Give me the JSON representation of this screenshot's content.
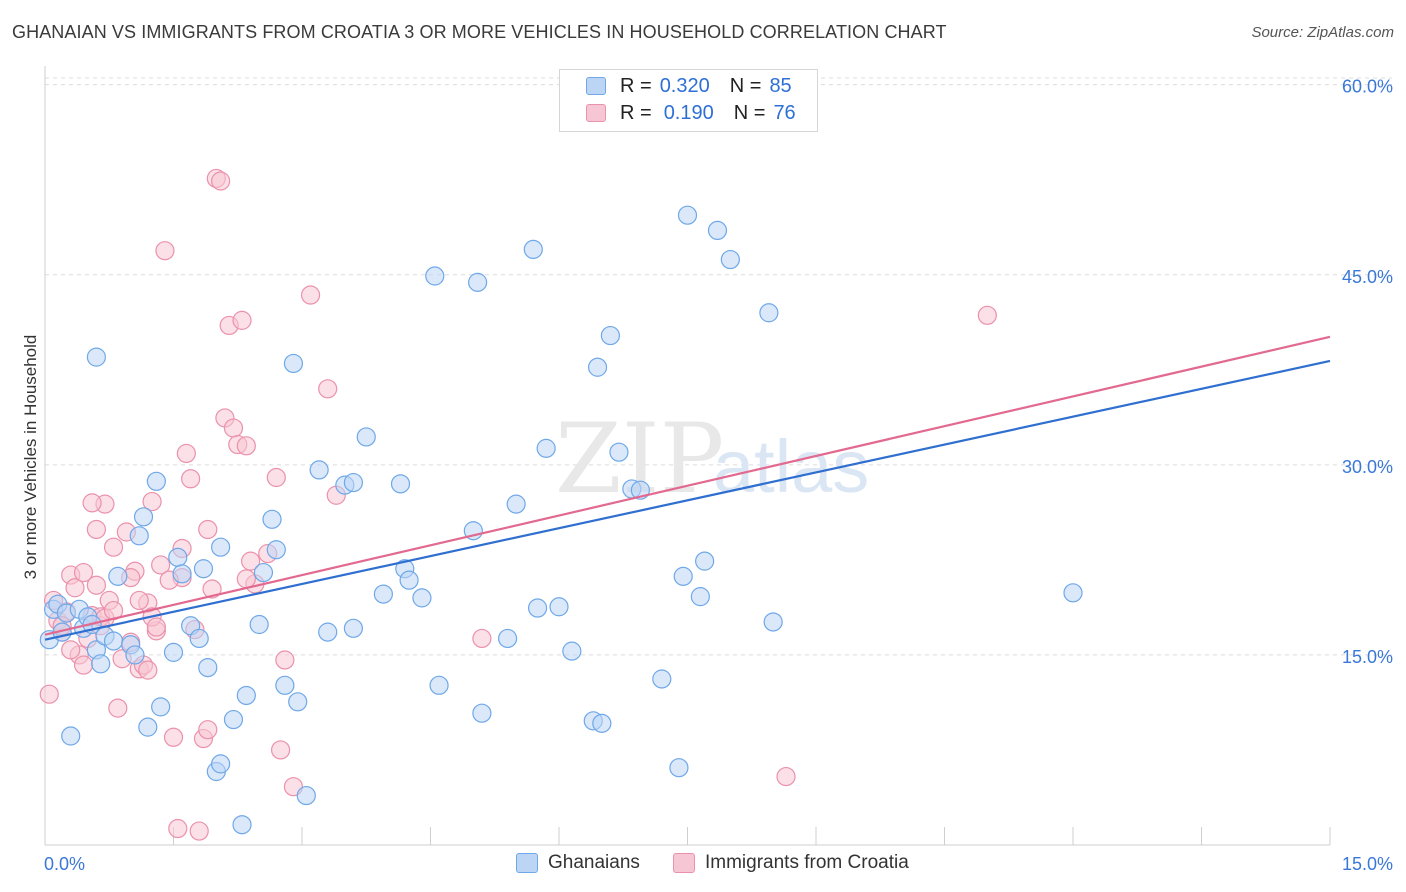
{
  "title": "GHANAIAN VS IMMIGRANTS FROM CROATIA 3 OR MORE VEHICLES IN HOUSEHOLD CORRELATION CHART",
  "source": "Source: ZipAtlas.com",
  "watermark": {
    "zip": "ZIP",
    "atlas": "atlas"
  },
  "legend": {
    "rows": [
      {
        "r_label": "R =",
        "r_value": "0.320",
        "n_label": "N =",
        "n_value": "85"
      },
      {
        "r_label": "R =",
        "r_value": "0.190",
        "n_label": "N =",
        "n_value": "76"
      }
    ]
  },
  "bottom_legend": {
    "series1": "Ghanaians",
    "series2": "Immigrants from Croatia"
  },
  "chart_data": {
    "type": "scatter",
    "title": "GHANAIAN VS IMMIGRANTS FROM CROATIA 3 OR MORE VEHICLES IN HOUSEHOLD CORRELATION CHART",
    "xlabel": "",
    "ylabel": "3 or more Vehicles in Household",
    "xlim": [
      0,
      15
    ],
    "ylim": [
      0,
      61
    ],
    "x_tick_labels": [
      "0.0%",
      "15.0%"
    ],
    "y_ticks": [
      15,
      30,
      45,
      60
    ],
    "y_tick_labels": [
      "15.0%",
      "30.0%",
      "45.0%",
      "60.0%"
    ],
    "grid": true,
    "colors": {
      "series1": "#6fa8e8",
      "series1_fill": "#bcd5f5",
      "series1_line": "#2f6fd0",
      "series2": "#eb91ab",
      "series2_fill": "#f7c6d4",
      "series2_line": "#e2698f",
      "axis_label": "#3a78d8"
    },
    "series": [
      {
        "name": "Ghanaians",
        "R": 0.32,
        "N": 85,
        "trend": {
          "x": [
            0,
            15
          ],
          "y": [
            16.2,
            38.2
          ]
        },
        "points": [
          [
            0.05,
            16.2
          ],
          [
            0.1,
            18.6
          ],
          [
            0.15,
            19.0
          ],
          [
            0.2,
            16.8
          ],
          [
            0.25,
            18.3
          ],
          [
            0.3,
            8.6
          ],
          [
            0.4,
            18.6
          ],
          [
            0.45,
            17.1
          ],
          [
            0.5,
            18.0
          ],
          [
            0.55,
            17.4
          ],
          [
            0.6,
            15.4
          ],
          [
            0.65,
            14.3
          ],
          [
            0.7,
            16.5
          ],
          [
            0.8,
            16.1
          ],
          [
            0.85,
            21.2
          ],
          [
            1.0,
            15.8
          ],
          [
            1.05,
            15.0
          ],
          [
            1.1,
            24.4
          ],
          [
            1.2,
            9.3
          ],
          [
            1.3,
            28.7
          ],
          [
            1.35,
            10.9
          ],
          [
            1.5,
            15.2
          ],
          [
            1.55,
            22.7
          ],
          [
            1.6,
            21.4
          ],
          [
            1.7,
            17.3
          ],
          [
            1.8,
            16.3
          ],
          [
            1.85,
            21.8
          ],
          [
            1.9,
            14.0
          ],
          [
            2.0,
            5.8
          ],
          [
            2.05,
            6.4
          ],
          [
            2.05,
            23.5
          ],
          [
            2.2,
            9.9
          ],
          [
            2.3,
            1.6
          ],
          [
            2.35,
            11.8
          ],
          [
            2.5,
            17.4
          ],
          [
            2.55,
            21.5
          ],
          [
            2.65,
            25.7
          ],
          [
            2.7,
            23.3
          ],
          [
            2.8,
            12.6
          ],
          [
            2.9,
            38.0
          ],
          [
            2.95,
            11.3
          ],
          [
            3.05,
            3.9
          ],
          [
            3.2,
            29.6
          ],
          [
            3.3,
            16.8
          ],
          [
            3.5,
            28.4
          ],
          [
            3.6,
            28.6
          ],
          [
            3.6,
            17.1
          ],
          [
            3.75,
            32.2
          ],
          [
            3.95,
            19.8
          ],
          [
            4.15,
            28.5
          ],
          [
            4.2,
            21.8
          ],
          [
            4.25,
            20.9
          ],
          [
            4.4,
            19.5
          ],
          [
            4.55,
            44.9
          ],
          [
            4.6,
            12.6
          ],
          [
            5.0,
            24.8
          ],
          [
            5.05,
            44.4
          ],
          [
            5.1,
            10.4
          ],
          [
            5.4,
            16.3
          ],
          [
            5.5,
            26.9
          ],
          [
            5.7,
            47.0
          ],
          [
            5.75,
            18.7
          ],
          [
            5.85,
            31.3
          ],
          [
            6.0,
            18.8
          ],
          [
            6.15,
            15.3
          ],
          [
            6.4,
            9.8
          ],
          [
            6.45,
            37.7
          ],
          [
            6.5,
            9.6
          ],
          [
            6.6,
            40.2
          ],
          [
            6.7,
            31.0
          ],
          [
            6.85,
            28.1
          ],
          [
            6.95,
            28.0
          ],
          [
            7.2,
            13.1
          ],
          [
            7.4,
            6.1
          ],
          [
            7.45,
            21.2
          ],
          [
            7.5,
            49.7
          ],
          [
            7.65,
            19.6
          ],
          [
            7.7,
            22.4
          ],
          [
            7.85,
            48.5
          ],
          [
            8.0,
            46.2
          ],
          [
            8.45,
            42.0
          ],
          [
            8.5,
            17.6
          ],
          [
            12.0,
            19.9
          ],
          [
            0.6,
            38.5
          ],
          [
            1.15,
            25.9
          ]
        ]
      },
      {
        "name": "Immigrants from Croatia",
        "R": 0.19,
        "N": 76,
        "trend": {
          "x": [
            0,
            15
          ],
          "y": [
            16.6,
            40.1
          ]
        },
        "points": [
          [
            0.05,
            11.9
          ],
          [
            0.1,
            19.3
          ],
          [
            0.15,
            17.7
          ],
          [
            0.2,
            16.8
          ],
          [
            0.25,
            18.4
          ],
          [
            0.3,
            21.3
          ],
          [
            0.35,
            20.3
          ],
          [
            0.4,
            15.0
          ],
          [
            0.45,
            14.2
          ],
          [
            0.5,
            16.3
          ],
          [
            0.55,
            18.1
          ],
          [
            0.6,
            20.5
          ],
          [
            0.6,
            24.9
          ],
          [
            0.65,
            17.3
          ],
          [
            0.7,
            26.9
          ],
          [
            0.75,
            19.3
          ],
          [
            0.8,
            23.5
          ],
          [
            0.85,
            10.8
          ],
          [
            0.9,
            14.7
          ],
          [
            0.95,
            24.7
          ],
          [
            1.0,
            16.0
          ],
          [
            1.05,
            21.6
          ],
          [
            1.1,
            13.9
          ],
          [
            1.15,
            14.2
          ],
          [
            1.2,
            19.1
          ],
          [
            1.25,
            27.1
          ],
          [
            1.3,
            16.9
          ],
          [
            1.35,
            22.1
          ],
          [
            1.4,
            46.9
          ],
          [
            1.5,
            8.5
          ],
          [
            1.55,
            1.3
          ],
          [
            1.6,
            21.1
          ],
          [
            1.65,
            30.9
          ],
          [
            1.7,
            28.9
          ],
          [
            1.75,
            17.0
          ],
          [
            1.8,
            1.1
          ],
          [
            1.85,
            8.4
          ],
          [
            1.9,
            9.1
          ],
          [
            1.95,
            20.2
          ],
          [
            2.0,
            52.6
          ],
          [
            2.05,
            52.4
          ],
          [
            2.1,
            33.7
          ],
          [
            2.15,
            41.0
          ],
          [
            2.2,
            32.9
          ],
          [
            2.25,
            31.6
          ],
          [
            2.3,
            41.4
          ],
          [
            2.35,
            31.5
          ],
          [
            2.4,
            22.4
          ],
          [
            2.45,
            20.6
          ],
          [
            2.6,
            23.0
          ],
          [
            2.7,
            29.0
          ],
          [
            2.75,
            7.5
          ],
          [
            2.8,
            14.6
          ],
          [
            2.9,
            4.6
          ],
          [
            3.1,
            43.4
          ],
          [
            3.3,
            36.0
          ],
          [
            3.4,
            27.6
          ],
          [
            0.2,
            17.3
          ],
          [
            0.3,
            15.4
          ],
          [
            0.55,
            27.0
          ],
          [
            0.65,
            18.0
          ],
          [
            0.7,
            17.9
          ],
          [
            1.0,
            21.1
          ],
          [
            1.1,
            19.3
          ],
          [
            1.25,
            18.0
          ],
          [
            1.3,
            17.2
          ],
          [
            1.45,
            20.9
          ],
          [
            1.6,
            23.4
          ],
          [
            1.9,
            24.9
          ],
          [
            2.35,
            21.0
          ],
          [
            5.1,
            16.3
          ],
          [
            8.65,
            5.4
          ],
          [
            11.0,
            41.8
          ],
          [
            0.45,
            21.5
          ],
          [
            0.8,
            18.5
          ],
          [
            1.2,
            13.8
          ]
        ]
      }
    ]
  }
}
